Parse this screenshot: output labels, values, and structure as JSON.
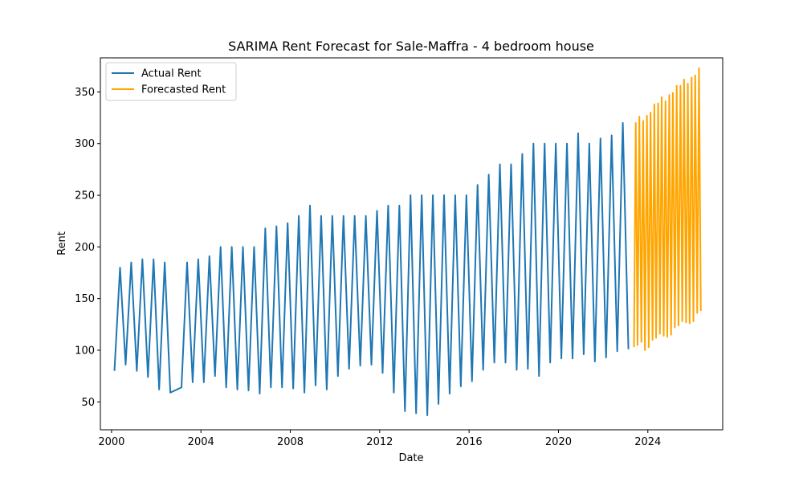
{
  "chart_data": {
    "type": "line",
    "title": "SARIMA Rent Forecast for Sale-Maffra - 4 bedroom house",
    "xlabel": "Date",
    "ylabel": "Rent",
    "xlim": [
      1999.5,
      2027.35
    ],
    "ylim": [
      23,
      383
    ],
    "x_ticks": [
      2000,
      2004,
      2008,
      2012,
      2016,
      2020,
      2024
    ],
    "x_tick_labels": [
      "2000",
      "2004",
      "2008",
      "2012",
      "2016",
      "2020",
      "2024"
    ],
    "y_ticks": [
      50,
      100,
      150,
      200,
      250,
      300,
      350
    ],
    "y_tick_labels": [
      "50",
      "100",
      "150",
      "200",
      "250",
      "300",
      "350"
    ],
    "grid": false,
    "legend": "upper-left",
    "series": [
      {
        "name": "Actual Rent",
        "color": "#1f77b4",
        "points": [
          [
            2000.13,
            80
          ],
          [
            2000.38,
            180
          ],
          [
            2000.63,
            86
          ],
          [
            2000.88,
            185
          ],
          [
            2001.13,
            80
          ],
          [
            2001.38,
            188
          ],
          [
            2001.63,
            74
          ],
          [
            2001.88,
            188
          ],
          [
            2002.13,
            62
          ],
          [
            2002.38,
            185
          ],
          [
            2002.63,
            59
          ],
          [
            2003.13,
            64
          ],
          [
            2003.38,
            185
          ],
          [
            2003.63,
            69
          ],
          [
            2003.88,
            188
          ],
          [
            2004.13,
            69
          ],
          [
            2004.38,
            191
          ],
          [
            2004.63,
            75
          ],
          [
            2004.88,
            200
          ],
          [
            2005.13,
            64
          ],
          [
            2005.38,
            200
          ],
          [
            2005.63,
            62
          ],
          [
            2005.88,
            200
          ],
          [
            2006.13,
            61
          ],
          [
            2006.38,
            200
          ],
          [
            2006.63,
            58
          ],
          [
            2006.88,
            218
          ],
          [
            2007.13,
            64
          ],
          [
            2007.38,
            220
          ],
          [
            2007.63,
            64
          ],
          [
            2007.88,
            223
          ],
          [
            2008.13,
            63
          ],
          [
            2008.38,
            230
          ],
          [
            2008.63,
            59
          ],
          [
            2008.88,
            240
          ],
          [
            2009.13,
            66
          ],
          [
            2009.38,
            230
          ],
          [
            2009.63,
            62
          ],
          [
            2009.88,
            230
          ],
          [
            2010.13,
            75
          ],
          [
            2010.38,
            230
          ],
          [
            2010.63,
            82
          ],
          [
            2010.88,
            230
          ],
          [
            2011.13,
            85
          ],
          [
            2011.38,
            230
          ],
          [
            2011.63,
            86
          ],
          [
            2011.88,
            235
          ],
          [
            2012.13,
            78
          ],
          [
            2012.38,
            240
          ],
          [
            2012.63,
            59
          ],
          [
            2012.88,
            240
          ],
          [
            2013.13,
            41
          ],
          [
            2013.38,
            250
          ],
          [
            2013.63,
            39
          ],
          [
            2013.88,
            250
          ],
          [
            2014.13,
            37
          ],
          [
            2014.38,
            250
          ],
          [
            2014.63,
            48
          ],
          [
            2014.88,
            250
          ],
          [
            2015.13,
            58
          ],
          [
            2015.38,
            250
          ],
          [
            2015.63,
            65
          ],
          [
            2015.88,
            250
          ],
          [
            2016.13,
            70
          ],
          [
            2016.38,
            260
          ],
          [
            2016.63,
            81
          ],
          [
            2016.88,
            270
          ],
          [
            2017.13,
            88
          ],
          [
            2017.38,
            280
          ],
          [
            2017.63,
            88
          ],
          [
            2017.88,
            280
          ],
          [
            2018.13,
            81
          ],
          [
            2018.38,
            290
          ],
          [
            2018.63,
            82
          ],
          [
            2018.88,
            300
          ],
          [
            2019.13,
            75
          ],
          [
            2019.38,
            300
          ],
          [
            2019.63,
            88
          ],
          [
            2019.88,
            300
          ],
          [
            2020.13,
            92
          ],
          [
            2020.38,
            300
          ],
          [
            2020.63,
            92
          ],
          [
            2020.88,
            310
          ],
          [
            2021.13,
            96
          ],
          [
            2021.38,
            300
          ],
          [
            2021.63,
            89
          ],
          [
            2021.88,
            305
          ],
          [
            2022.13,
            93
          ],
          [
            2022.38,
            308
          ],
          [
            2022.63,
            99
          ],
          [
            2022.88,
            320
          ],
          [
            2023.13,
            101
          ]
        ]
      },
      {
        "name": "Forecasted Rent",
        "color": "#ffa500",
        "points": [
          [
            2023.38,
            103
          ],
          [
            2023.46,
            320
          ],
          [
            2023.54,
            105
          ],
          [
            2023.62,
            326
          ],
          [
            2023.71,
            108
          ],
          [
            2023.79,
            322
          ],
          [
            2023.87,
            100
          ],
          [
            2023.96,
            327
          ],
          [
            2024.04,
            103
          ],
          [
            2024.12,
            330
          ],
          [
            2024.21,
            110
          ],
          [
            2024.29,
            338
          ],
          [
            2024.37,
            112
          ],
          [
            2024.46,
            339
          ],
          [
            2024.54,
            116
          ],
          [
            2024.62,
            345
          ],
          [
            2024.71,
            114
          ],
          [
            2024.79,
            341
          ],
          [
            2024.87,
            113
          ],
          [
            2024.96,
            347
          ],
          [
            2025.04,
            115
          ],
          [
            2025.12,
            349
          ],
          [
            2025.21,
            122
          ],
          [
            2025.29,
            356
          ],
          [
            2025.37,
            124
          ],
          [
            2025.46,
            356
          ],
          [
            2025.54,
            128
          ],
          [
            2025.62,
            362
          ],
          [
            2025.71,
            127
          ],
          [
            2025.79,
            358
          ],
          [
            2025.87,
            126
          ],
          [
            2025.96,
            364
          ],
          [
            2026.04,
            128
          ],
          [
            2026.12,
            366
          ],
          [
            2026.21,
            136
          ],
          [
            2026.29,
            373
          ],
          [
            2026.37,
            138
          ]
        ]
      }
    ]
  }
}
